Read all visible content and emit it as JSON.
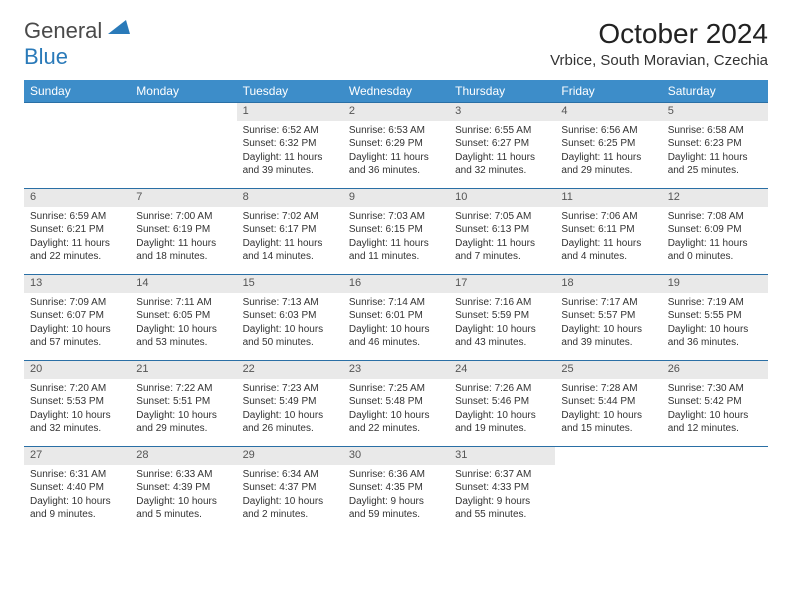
{
  "logo": {
    "text1": "General",
    "text2": "Blue"
  },
  "title": "October 2024",
  "location": "Vrbice, South Moravian, Czechia",
  "colors": {
    "header_bg": "#3d8dc9",
    "daynum_bg": "#e9e9e9",
    "border": "#2a6fa5",
    "text": "#333333"
  },
  "weekdays": [
    "Sunday",
    "Monday",
    "Tuesday",
    "Wednesday",
    "Thursday",
    "Friday",
    "Saturday"
  ],
  "weeks": [
    {
      "days": [
        {
          "num": "",
          "sunrise": "",
          "sunset": "",
          "daylight": ""
        },
        {
          "num": "",
          "sunrise": "",
          "sunset": "",
          "daylight": ""
        },
        {
          "num": "1",
          "sunrise": "Sunrise: 6:52 AM",
          "sunset": "Sunset: 6:32 PM",
          "daylight": "Daylight: 11 hours and 39 minutes."
        },
        {
          "num": "2",
          "sunrise": "Sunrise: 6:53 AM",
          "sunset": "Sunset: 6:29 PM",
          "daylight": "Daylight: 11 hours and 36 minutes."
        },
        {
          "num": "3",
          "sunrise": "Sunrise: 6:55 AM",
          "sunset": "Sunset: 6:27 PM",
          "daylight": "Daylight: 11 hours and 32 minutes."
        },
        {
          "num": "4",
          "sunrise": "Sunrise: 6:56 AM",
          "sunset": "Sunset: 6:25 PM",
          "daylight": "Daylight: 11 hours and 29 minutes."
        },
        {
          "num": "5",
          "sunrise": "Sunrise: 6:58 AM",
          "sunset": "Sunset: 6:23 PM",
          "daylight": "Daylight: 11 hours and 25 minutes."
        }
      ]
    },
    {
      "days": [
        {
          "num": "6",
          "sunrise": "Sunrise: 6:59 AM",
          "sunset": "Sunset: 6:21 PM",
          "daylight": "Daylight: 11 hours and 22 minutes."
        },
        {
          "num": "7",
          "sunrise": "Sunrise: 7:00 AM",
          "sunset": "Sunset: 6:19 PM",
          "daylight": "Daylight: 11 hours and 18 minutes."
        },
        {
          "num": "8",
          "sunrise": "Sunrise: 7:02 AM",
          "sunset": "Sunset: 6:17 PM",
          "daylight": "Daylight: 11 hours and 14 minutes."
        },
        {
          "num": "9",
          "sunrise": "Sunrise: 7:03 AM",
          "sunset": "Sunset: 6:15 PM",
          "daylight": "Daylight: 11 hours and 11 minutes."
        },
        {
          "num": "10",
          "sunrise": "Sunrise: 7:05 AM",
          "sunset": "Sunset: 6:13 PM",
          "daylight": "Daylight: 11 hours and 7 minutes."
        },
        {
          "num": "11",
          "sunrise": "Sunrise: 7:06 AM",
          "sunset": "Sunset: 6:11 PM",
          "daylight": "Daylight: 11 hours and 4 minutes."
        },
        {
          "num": "12",
          "sunrise": "Sunrise: 7:08 AM",
          "sunset": "Sunset: 6:09 PM",
          "daylight": "Daylight: 11 hours and 0 minutes."
        }
      ]
    },
    {
      "days": [
        {
          "num": "13",
          "sunrise": "Sunrise: 7:09 AM",
          "sunset": "Sunset: 6:07 PM",
          "daylight": "Daylight: 10 hours and 57 minutes."
        },
        {
          "num": "14",
          "sunrise": "Sunrise: 7:11 AM",
          "sunset": "Sunset: 6:05 PM",
          "daylight": "Daylight: 10 hours and 53 minutes."
        },
        {
          "num": "15",
          "sunrise": "Sunrise: 7:13 AM",
          "sunset": "Sunset: 6:03 PM",
          "daylight": "Daylight: 10 hours and 50 minutes."
        },
        {
          "num": "16",
          "sunrise": "Sunrise: 7:14 AM",
          "sunset": "Sunset: 6:01 PM",
          "daylight": "Daylight: 10 hours and 46 minutes."
        },
        {
          "num": "17",
          "sunrise": "Sunrise: 7:16 AM",
          "sunset": "Sunset: 5:59 PM",
          "daylight": "Daylight: 10 hours and 43 minutes."
        },
        {
          "num": "18",
          "sunrise": "Sunrise: 7:17 AM",
          "sunset": "Sunset: 5:57 PM",
          "daylight": "Daylight: 10 hours and 39 minutes."
        },
        {
          "num": "19",
          "sunrise": "Sunrise: 7:19 AM",
          "sunset": "Sunset: 5:55 PM",
          "daylight": "Daylight: 10 hours and 36 minutes."
        }
      ]
    },
    {
      "days": [
        {
          "num": "20",
          "sunrise": "Sunrise: 7:20 AM",
          "sunset": "Sunset: 5:53 PM",
          "daylight": "Daylight: 10 hours and 32 minutes."
        },
        {
          "num": "21",
          "sunrise": "Sunrise: 7:22 AM",
          "sunset": "Sunset: 5:51 PM",
          "daylight": "Daylight: 10 hours and 29 minutes."
        },
        {
          "num": "22",
          "sunrise": "Sunrise: 7:23 AM",
          "sunset": "Sunset: 5:49 PM",
          "daylight": "Daylight: 10 hours and 26 minutes."
        },
        {
          "num": "23",
          "sunrise": "Sunrise: 7:25 AM",
          "sunset": "Sunset: 5:48 PM",
          "daylight": "Daylight: 10 hours and 22 minutes."
        },
        {
          "num": "24",
          "sunrise": "Sunrise: 7:26 AM",
          "sunset": "Sunset: 5:46 PM",
          "daylight": "Daylight: 10 hours and 19 minutes."
        },
        {
          "num": "25",
          "sunrise": "Sunrise: 7:28 AM",
          "sunset": "Sunset: 5:44 PM",
          "daylight": "Daylight: 10 hours and 15 minutes."
        },
        {
          "num": "26",
          "sunrise": "Sunrise: 7:30 AM",
          "sunset": "Sunset: 5:42 PM",
          "daylight": "Daylight: 10 hours and 12 minutes."
        }
      ]
    },
    {
      "days": [
        {
          "num": "27",
          "sunrise": "Sunrise: 6:31 AM",
          "sunset": "Sunset: 4:40 PM",
          "daylight": "Daylight: 10 hours and 9 minutes."
        },
        {
          "num": "28",
          "sunrise": "Sunrise: 6:33 AM",
          "sunset": "Sunset: 4:39 PM",
          "daylight": "Daylight: 10 hours and 5 minutes."
        },
        {
          "num": "29",
          "sunrise": "Sunrise: 6:34 AM",
          "sunset": "Sunset: 4:37 PM",
          "daylight": "Daylight: 10 hours and 2 minutes."
        },
        {
          "num": "30",
          "sunrise": "Sunrise: 6:36 AM",
          "sunset": "Sunset: 4:35 PM",
          "daylight": "Daylight: 9 hours and 59 minutes."
        },
        {
          "num": "31",
          "sunrise": "Sunrise: 6:37 AM",
          "sunset": "Sunset: 4:33 PM",
          "daylight": "Daylight: 9 hours and 55 minutes."
        },
        {
          "num": "",
          "sunrise": "",
          "sunset": "",
          "daylight": ""
        },
        {
          "num": "",
          "sunrise": "",
          "sunset": "",
          "daylight": ""
        }
      ]
    }
  ]
}
